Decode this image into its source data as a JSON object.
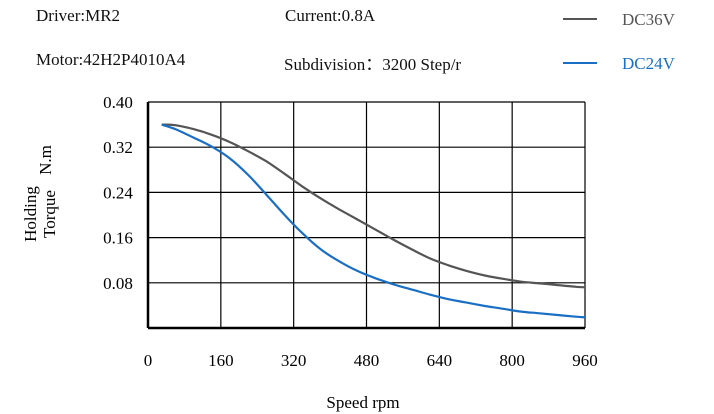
{
  "header": {
    "driver": "Driver:MR2",
    "current": "Current:0.8A",
    "motor": "Motor:42H2P4010A4",
    "subdivision": "Subdivision：3200 Step/r"
  },
  "chart_data": {
    "type": "line",
    "title": "",
    "xlabel": "Speed rpm",
    "ylabel_line1": "Holding",
    "ylabel_line2": "Torque",
    "ylabel_unit": "N.m",
    "xlim": [
      0,
      960
    ],
    "ylim": [
      0,
      0.4
    ],
    "x_ticks": [
      "0",
      "160",
      "320",
      "480",
      "640",
      "800",
      "960"
    ],
    "y_ticks": [
      "0.08",
      "0.16",
      "0.24",
      "0.32",
      "0.40"
    ],
    "grid": true,
    "legend_position": "top-right",
    "series": [
      {
        "name": "DC36V",
        "color": "#555555",
        "x": [
          30,
          60,
          100,
          140,
          180,
          220,
          260,
          300,
          340,
          380,
          420,
          460,
          500,
          540,
          580,
          620,
          660,
          700,
          740,
          780,
          820,
          860,
          900,
          940,
          960
        ],
        "y": [
          0.36,
          0.359,
          0.352,
          0.342,
          0.329,
          0.313,
          0.295,
          0.273,
          0.25,
          0.229,
          0.21,
          0.192,
          0.174,
          0.156,
          0.139,
          0.123,
          0.111,
          0.101,
          0.093,
          0.087,
          0.082,
          0.079,
          0.076,
          0.073,
          0.072
        ]
      },
      {
        "name": "DC24V",
        "color": "#1a6fc4",
        "x": [
          30,
          60,
          100,
          140,
          180,
          220,
          260,
          300,
          340,
          380,
          420,
          460,
          500,
          540,
          580,
          620,
          660,
          700,
          740,
          780,
          820,
          860,
          900,
          940,
          960
        ],
        "y": [
          0.36,
          0.352,
          0.337,
          0.321,
          0.3,
          0.271,
          0.236,
          0.2,
          0.167,
          0.139,
          0.118,
          0.101,
          0.088,
          0.077,
          0.068,
          0.059,
          0.051,
          0.045,
          0.039,
          0.034,
          0.029,
          0.026,
          0.023,
          0.02,
          0.019
        ]
      }
    ]
  }
}
